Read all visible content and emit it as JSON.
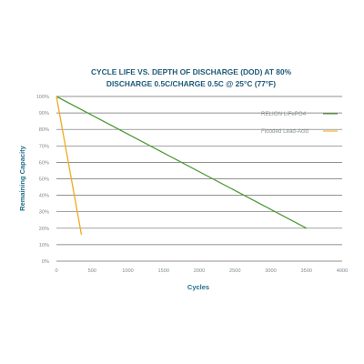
{
  "chart_data": {
    "type": "line",
    "title_lines": [
      "CYCLE LIFE VS. DEPTH OF DISCHARGE (DOD) AT 80%",
      "DISCHARGE 0.5C/CHARGE 0.5C @ 25°C (77°F)"
    ],
    "xlabel": "Cycles",
    "ylabel": "Remaining Capacity",
    "xlim": [
      0,
      4000
    ],
    "ylim": [
      0,
      100
    ],
    "x_ticks": [
      0,
      500,
      1000,
      1500,
      2000,
      2500,
      3000,
      3500,
      4000
    ],
    "y_ticks": [
      0,
      10,
      20,
      30,
      40,
      50,
      60,
      70,
      80,
      90,
      100
    ],
    "y_tick_suffix": "%",
    "grid": true,
    "legend_position": "top-right",
    "series": [
      {
        "name": "RELION LiFePO4",
        "color": "#4f9b38",
        "points": [
          [
            0,
            100
          ],
          [
            3500,
            20
          ]
        ]
      },
      {
        "name": "Flooded Lead-Acid",
        "color": "#f0ab1d",
        "points": [
          [
            0,
            100
          ],
          [
            350,
            16
          ]
        ]
      }
    ]
  }
}
